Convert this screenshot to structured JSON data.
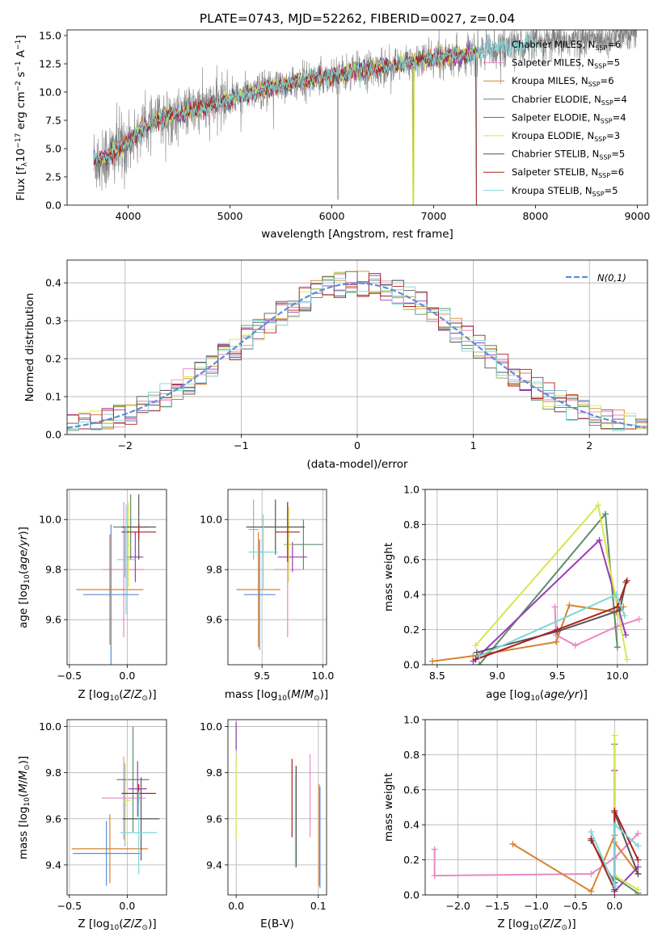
{
  "colors": {
    "Chabrier MILES": "#8fb8c8",
    "Salpeter MILES": "#e889c4",
    "Kroupa MILES": "#d8822e",
    "Chabrier ELODIE": "#5e8c6a",
    "Salpeter ELODIE": "#9a3cb8",
    "Kroupa ELODIE": "#d7e64a",
    "Chabrier STELIB": "#555555",
    "Salpeter STELIB": "#b01f1f",
    "Kroupa STELIB": "#7fd6d8",
    "data": "#808080",
    "normal": "#5b8fd9"
  },
  "chart_data": [
    {
      "id": "spectrum",
      "type": "line",
      "title": "PLATE=0743, MJD=52262, FIBERID=0027, z=0.04",
      "xlabel": "wavelength [Angstrom, rest frame]",
      "ylabel": "Flux [f",
      "xlim": [
        3400,
        9100
      ],
      "ylim": [
        0,
        15.5
      ],
      "xticks": [
        4000,
        5000,
        6000,
        7000,
        8000,
        9000
      ],
      "yticks": [
        0.0,
        2.5,
        5.0,
        7.5,
        10.0,
        12.5,
        15.0
      ],
      "legend": [
        {
          "model": "Chabrier MILES",
          "n": "6"
        },
        {
          "model": "Salpeter MILES",
          "n": "5"
        },
        {
          "model": "Kroupa MILES",
          "n": "6"
        },
        {
          "model": "Chabrier ELODIE",
          "n": "4"
        },
        {
          "model": "Salpeter ELODIE",
          "n": "4"
        },
        {
          "model": "Kroupa ELODIE",
          "n": "3"
        },
        {
          "model": "Chabrier STELIB",
          "n": "5"
        },
        {
          "model": "Salpeter STELIB",
          "n": "6"
        },
        {
          "model": "Kroupa STELIB",
          "n": "5"
        }
      ],
      "continuum": [
        [
          3650,
          4.0
        ],
        [
          3800,
          4.3
        ],
        [
          3950,
          5.2
        ],
        [
          4150,
          6.8
        ],
        [
          4350,
          7.8
        ],
        [
          4700,
          8.5
        ],
        [
          5000,
          9.4
        ],
        [
          5500,
          10.6
        ],
        [
          6000,
          11.5
        ],
        [
          6500,
          12.2
        ],
        [
          7000,
          13.0
        ],
        [
          7400,
          13.4
        ],
        [
          7700,
          14.0
        ],
        [
          8200,
          14.4
        ],
        [
          8700,
          14.8
        ],
        [
          9000,
          15.3
        ]
      ],
      "data_range": [
        3660,
        9000
      ],
      "model_range": [
        3660,
        7430
      ],
      "deep_absorptions": [
        [
          6060,
          0.5
        ],
        [
          6800,
          0.0
        ],
        [
          7420,
          0.0
        ]
      ]
    },
    {
      "id": "residuals",
      "type": "bar",
      "xlabel": "(data-model)/error",
      "ylabel": "Normed distribution",
      "xlim": [
        -2.5,
        2.5
      ],
      "ylim": [
        0,
        0.46
      ],
      "xticks": [
        -2,
        -1,
        0,
        1,
        2
      ],
      "yticks": [
        0.0,
        0.1,
        0.2,
        0.3,
        0.4
      ],
      "legend_label": "N(0,1)",
      "bin_width": 0.1
    },
    {
      "id": "age-vs-Z",
      "type": "scatter",
      "xlabel": "Z [log",
      "ylabel": "age  [log",
      "xlim": [
        -0.52,
        0.34
      ],
      "ylim": [
        9.42,
        10.12
      ],
      "xticks": [
        -0.5,
        0.0,
        0.5
      ],
      "yticks": [
        9.6,
        9.8,
        10.0
      ],
      "points": [
        {
          "model": "Chabrier MILES",
          "x": -0.02,
          "xe": 0.01,
          "y": 9.87,
          "ye": 0.1
        },
        {
          "model": "Salpeter MILES",
          "x": -0.03,
          "xe": 0.18,
          "y": 9.8,
          "ye": 0.27
        },
        {
          "model": "Kroupa MILES",
          "x": -0.15,
          "xe": 0.29,
          "y": 9.72,
          "ye": 0.22
        },
        {
          "model": "Chabrier ELODIE",
          "x": 0.03,
          "xe": 0.15,
          "y": 9.97,
          "ye": 0.13
        },
        {
          "model": "Salpeter ELODIE",
          "x": 0.07,
          "xe": 0.07,
          "y": 9.85,
          "ye": 0.1
        },
        {
          "model": "Kroupa ELODIE",
          "x": 0.01,
          "xe": 0.02,
          "y": 9.9,
          "ye": 0.17
        },
        {
          "model": "Chabrier STELIB",
          "x": 0.1,
          "xe": 0.15,
          "y": 9.97,
          "ye": 0.13
        },
        {
          "model": "Salpeter STELIB",
          "x": 0.1,
          "xe": 0.15,
          "y": 9.95,
          "ye": 0.03
        },
        {
          "model": "Kroupa STELIB",
          "x": -0.01,
          "xe": 0.08,
          "y": 9.84,
          "ye": 0.22
        },
        {
          "model": "normal",
          "x": -0.14,
          "xe": 0.24,
          "y": 9.7,
          "ye": 0.28
        }
      ]
    },
    {
      "id": "age-vs-mass",
      "type": "scatter",
      "xlabel": "mass [log",
      "ylabel": "",
      "xlim": [
        9.22,
        10.03
      ],
      "ylim": [
        9.42,
        10.12
      ],
      "xticks": [
        9.5,
        10.0
      ],
      "yticks": [
        9.6,
        9.8,
        10.0
      ],
      "points": [
        {
          "model": "Chabrier MILES",
          "x": 9.43,
          "xe": 0.04,
          "y": 9.96,
          "ye": 0.12
        },
        {
          "model": "Salpeter MILES",
          "x": 9.71,
          "xe": 0.11,
          "y": 9.8,
          "ye": 0.27
        },
        {
          "model": "Kroupa MILES",
          "x": 9.47,
          "xe": 0.18,
          "y": 9.72,
          "ye": 0.23
        },
        {
          "model": "Chabrier ELODIE",
          "x": 9.84,
          "xe": 0.16,
          "y": 9.9,
          "ye": 0.1
        },
        {
          "model": "Salpeter ELODIE",
          "x": 9.75,
          "xe": 0.12,
          "y": 9.85,
          "ye": 0.06
        },
        {
          "model": "Kroupa ELODIE",
          "x": 9.72,
          "xe": 0.03,
          "y": 9.9,
          "ye": 0.15
        },
        {
          "model": "Chabrier STELIB",
          "x": 9.61,
          "xe": 0.24,
          "y": 9.97,
          "ye": 0.11
        },
        {
          "model": "Salpeter STELIB",
          "x": 9.71,
          "xe": 0.1,
          "y": 9.95,
          "ye": 0.12
        },
        {
          "model": "Kroupa STELIB",
          "x": 9.51,
          "xe": 0.12,
          "y": 9.87,
          "ye": 0.15
        },
        {
          "model": "normal",
          "x": 9.48,
          "xe": 0.13,
          "y": 9.7,
          "ye": 0.22
        }
      ]
    },
    {
      "id": "weight-vs-age",
      "type": "line",
      "xlabel": "age  [log",
      "ylabel": "mass weight",
      "xlim": [
        8.4,
        10.25
      ],
      "ylim": [
        0,
        1.0
      ],
      "xticks": [
        8.5,
        9.0,
        9.5,
        10.0
      ],
      "yticks": [
        0.0,
        0.2,
        0.4,
        0.6,
        0.8,
        1.0
      ],
      "series": [
        {
          "model": "Salpeter MILES",
          "points": [
            [
              9.48,
              0.33
            ],
            [
              9.49,
              0.17
            ],
            [
              9.65,
              0.11
            ],
            [
              10.0,
              0.22
            ],
            [
              10.18,
              0.26
            ]
          ]
        },
        {
          "model": "Kroupa MILES",
          "points": [
            [
              8.46,
              0.02
            ],
            [
              8.8,
              0.05
            ],
            [
              9.49,
              0.13
            ],
            [
              9.6,
              0.34
            ],
            [
              9.99,
              0.3
            ],
            [
              10.05,
              0.33
            ]
          ]
        },
        {
          "model": "Chabrier ELODIE",
          "points": [
            [
              8.85,
              0.0
            ],
            [
              9.9,
              0.86
            ],
            [
              10.0,
              0.1
            ]
          ]
        },
        {
          "model": "Salpeter ELODIE",
          "points": [
            [
              8.8,
              0.02
            ],
            [
              9.85,
              0.71
            ],
            [
              10.07,
              0.17
            ]
          ]
        },
        {
          "model": "Kroupa ELODIE",
          "points": [
            [
              8.82,
              0.11
            ],
            [
              9.84,
              0.91
            ],
            [
              10.08,
              0.03
            ]
          ]
        },
        {
          "model": "Chabrier STELIB",
          "points": [
            [
              8.83,
              0.07
            ],
            [
              9.5,
              0.19
            ],
            [
              10.02,
              0.31
            ],
            [
              10.07,
              0.47
            ]
          ]
        },
        {
          "model": "Salpeter STELIB",
          "points": [
            [
              8.82,
              0.03
            ],
            [
              9.5,
              0.2
            ],
            [
              10.0,
              0.33
            ],
            [
              10.08,
              0.48
            ]
          ]
        },
        {
          "model": "Kroupa STELIB",
          "points": [
            [
              8.85,
              0.05
            ],
            [
              9.99,
              0.4
            ],
            [
              10.06,
              0.28
            ]
          ]
        }
      ]
    },
    {
      "id": "mass-vs-Z",
      "type": "scatter",
      "xlabel": "Z [log",
      "ylabel": "mass [log",
      "xlim": [
        -0.52,
        0.34
      ],
      "ylim": [
        9.27,
        10.03
      ],
      "xticks": [
        -0.5,
        0.0,
        0.5
      ],
      "yticks": [
        9.4,
        9.6,
        9.8,
        10.0
      ],
      "points": [
        {
          "model": "Chabrier MILES",
          "x": -0.02,
          "xe": 0.01,
          "y": 9.66,
          "ye": 0.18
        },
        {
          "model": "Salpeter MILES",
          "x": -0.03,
          "xe": 0.19,
          "y": 9.69,
          "ye": 0.18
        },
        {
          "model": "Kroupa MILES",
          "x": -0.15,
          "xe": 0.33,
          "y": 9.47,
          "ye": 0.15
        },
        {
          "model": "Chabrier ELODIE",
          "x": 0.05,
          "xe": 0.14,
          "y": 9.77,
          "ye": 0.23
        },
        {
          "model": "Salpeter ELODIE",
          "x": 0.09,
          "xe": 0.08,
          "y": 9.73,
          "ye": 0.12
        },
        {
          "model": "Kroupa ELODIE",
          "x": 0.0,
          "xe": 0.03,
          "y": 9.68,
          "ye": 0.18
        },
        {
          "model": "Chabrier STELIB",
          "x": 0.12,
          "xe": 0.16,
          "y": 9.6,
          "ye": 0.18
        },
        {
          "model": "Salpeter STELIB",
          "x": 0.1,
          "xe": 0.15,
          "y": 9.71,
          "ye": 0.04
        },
        {
          "model": "Kroupa STELIB",
          "x": 0.1,
          "xe": 0.16,
          "y": 9.54,
          "ye": 0.18
        },
        {
          "model": "normal",
          "x": -0.18,
          "xe": 0.29,
          "y": 9.45,
          "ye": 0.14
        }
      ]
    },
    {
      "id": "mass-vs-ebv",
      "type": "scatter",
      "xlabel": "E(B-V)",
      "ylabel": "",
      "xlim": [
        -0.01,
        0.11
      ],
      "ylim": [
        9.27,
        10.03
      ],
      "xticks": [
        0.0,
        0.1
      ],
      "yticks": [
        9.4,
        9.6,
        9.8,
        10.0
      ],
      "points": [
        {
          "model": "Chabrier MILES",
          "x": 0.0,
          "xe": 0.0,
          "y": 9.95,
          "ye": 0.06
        },
        {
          "model": "Salpeter MILES",
          "x": 0.09,
          "xe": 0.0,
          "y": 9.7,
          "ye": 0.18
        },
        {
          "model": "Kroupa MILES",
          "x": 0.101,
          "xe": 0.0,
          "y": 9.53,
          "ye": 0.22
        },
        {
          "model": "Chabrier ELODIE",
          "x": 0.073,
          "xe": 0.0,
          "y": 9.69,
          "ye": 0.14
        },
        {
          "model": "Salpeter ELODIE",
          "x": 0.0,
          "xe": 0.0,
          "y": 9.96,
          "ye": 0.06
        },
        {
          "model": "Kroupa ELODIE",
          "x": 0.0,
          "xe": 0.0,
          "y": 9.69,
          "ye": 0.18
        },
        {
          "model": "Chabrier STELIB",
          "x": 0.073,
          "xe": 0.0,
          "y": 9.61,
          "ye": 0.22
        },
        {
          "model": "Salpeter STELIB",
          "x": 0.068,
          "xe": 0.0,
          "y": 9.69,
          "ye": 0.17
        },
        {
          "model": "Kroupa STELIB",
          "x": 0.072,
          "xe": 0.0,
          "y": 9.59,
          "ye": 0.2
        },
        {
          "model": "normal",
          "x": 0.102,
          "xe": 0.0,
          "y": 9.52,
          "ye": 0.22
        }
      ]
    },
    {
      "id": "weight-vs-Z",
      "type": "line",
      "xlabel": "Z [log",
      "ylabel": "mass weight",
      "xlim": [
        -2.42,
        0.42
      ],
      "ylim": [
        0,
        1.0
      ],
      "xticks": [
        -2.0,
        -1.5,
        -1.0,
        -0.5,
        0.0
      ],
      "yticks": [
        0.0,
        0.2,
        0.4,
        0.6,
        0.8,
        1.0
      ],
      "series": [
        {
          "model": "Salpeter MILES",
          "points": [
            [
              -2.3,
              0.26
            ],
            [
              -2.3,
              0.11
            ],
            [
              -0.3,
              0.12
            ],
            [
              0.0,
              0.21
            ],
            [
              0.3,
              0.35
            ]
          ]
        },
        {
          "model": "Kroupa MILES",
          "points": [
            [
              -1.3,
              0.29
            ],
            [
              -0.3,
              0.02
            ],
            [
              0.0,
              0.34
            ],
            [
              0.0,
              0.3
            ],
            [
              0.3,
              0.12
            ]
          ]
        },
        {
          "model": "Chabrier ELODIE",
          "points": [
            [
              0.0,
              0.86
            ],
            [
              0.0,
              0.1
            ],
            [
              0.3,
              0.01
            ]
          ]
        },
        {
          "model": "Salpeter ELODIE",
          "points": [
            [
              0.0,
              0.71
            ],
            [
              0.0,
              0.02
            ],
            [
              0.3,
              0.16
            ]
          ]
        },
        {
          "model": "Kroupa ELODIE",
          "points": [
            [
              0.0,
              0.91
            ],
            [
              0.0,
              0.11
            ],
            [
              0.3,
              0.03
            ]
          ]
        },
        {
          "model": "Chabrier STELIB",
          "points": [
            [
              -0.3,
              0.31
            ],
            [
              0.0,
              0.07
            ],
            [
              0.0,
              0.47
            ],
            [
              0.3,
              0.12
            ]
          ]
        },
        {
          "model": "Salpeter STELIB",
          "points": [
            [
              -0.3,
              0.32
            ],
            [
              0.0,
              0.03
            ],
            [
              0.0,
              0.48
            ],
            [
              0.3,
              0.2
            ]
          ]
        },
        {
          "model": "Kroupa STELIB",
          "points": [
            [
              -0.3,
              0.36
            ],
            [
              0.0,
              0.05
            ],
            [
              0.0,
              0.4
            ],
            [
              0.3,
              0.28
            ]
          ]
        }
      ]
    }
  ]
}
